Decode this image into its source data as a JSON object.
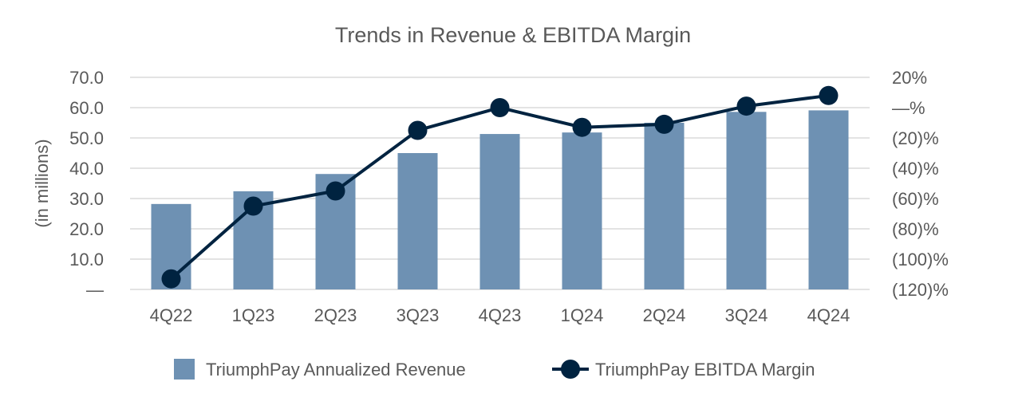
{
  "chart_data": {
    "type": "bar+line",
    "title": "Trends in Revenue & EBITDA Margin",
    "ylabel": "(in millions)",
    "categories": [
      "4Q22",
      "1Q23",
      "2Q23",
      "3Q23",
      "4Q23",
      "1Q24",
      "2Q24",
      "3Q24",
      "4Q24"
    ],
    "y_left": {
      "range": [
        0,
        70
      ],
      "ticks": [
        0,
        10,
        20,
        30,
        40,
        50,
        60,
        70
      ],
      "tick_labels": [
        "—",
        "10.0",
        "20.0",
        "30.0",
        "40.0",
        "50.0",
        "60.0",
        "70.0"
      ]
    },
    "y_right": {
      "range": [
        -120,
        20
      ],
      "ticks": [
        -120,
        -100,
        -80,
        -60,
        -40,
        -20,
        0,
        20
      ],
      "tick_labels": [
        "(120)%",
        "(100)%",
        "(80)%",
        "(60)%",
        "(40)%",
        "(20)%",
        "—%",
        "20%"
      ]
    },
    "grid": true,
    "legend_position": "bottom",
    "series": [
      {
        "name": "TriumphPay Annualized Revenue",
        "type": "bar",
        "axis": "left",
        "color": "#6e91b3",
        "values": [
          28.2,
          32.4,
          38.1,
          45.0,
          51.3,
          51.8,
          55.0,
          58.6,
          59.1
        ]
      },
      {
        "name": "TriumphPay EBITDA Margin",
        "type": "line",
        "axis": "right",
        "color": "#002340",
        "values": [
          -113,
          -65,
          -55,
          -15,
          0,
          -13,
          -11,
          1,
          8
        ]
      }
    ]
  }
}
